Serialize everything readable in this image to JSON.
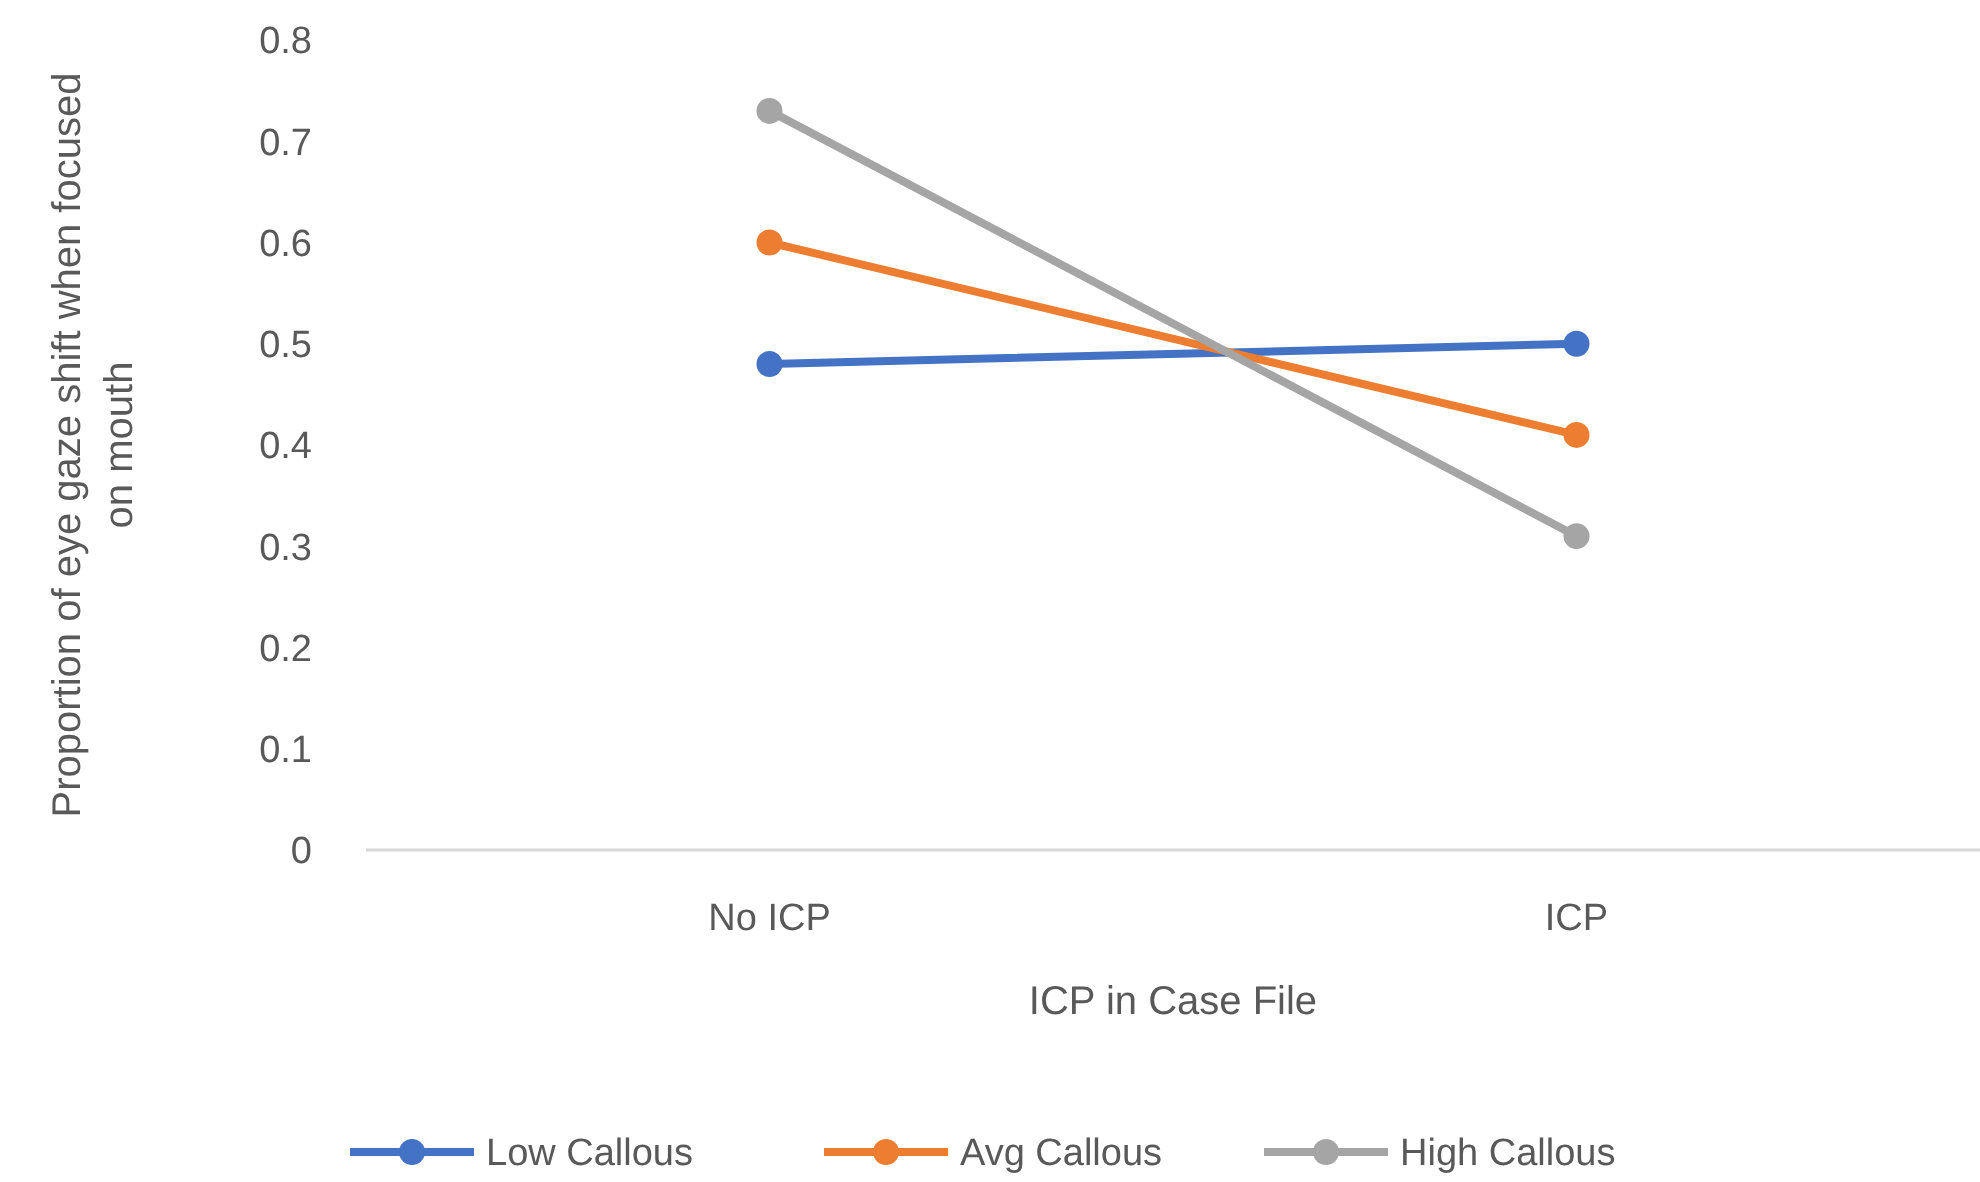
{
  "chart_data": {
    "type": "line",
    "xlabel": "ICP in Case File",
    "ylabel": "Proportion of eye gaze shift when focused on mouth",
    "categories": [
      "No ICP",
      "ICP"
    ],
    "series": [
      {
        "name": "Low Callous",
        "color": "#4472c4",
        "values": [
          0.48,
          0.5
        ]
      },
      {
        "name": "Avg Callous",
        "color": "#ed7d31",
        "values": [
          0.6,
          0.41
        ]
      },
      {
        "name": "High Callous",
        "color": "#a5a5a5",
        "values": [
          0.73,
          0.31
        ]
      }
    ],
    "ylim": [
      0,
      0.8
    ],
    "yticks": [
      0,
      0.1,
      0.2,
      0.3,
      0.4,
      0.5,
      0.6,
      0.7,
      0.8
    ],
    "grid": false,
    "legend": "bottom",
    "marker": "circle",
    "line_style": "solid"
  }
}
